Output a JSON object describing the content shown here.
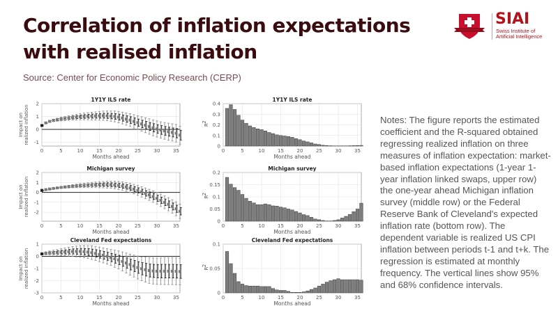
{
  "header": {
    "title": "Correlation of inflation expectations with realised inflation",
    "source": "Source: Center for Economic Policy Research (CERP)"
  },
  "logo": {
    "brand": "SIAI",
    "subtitle_line1": "Swiss Institute of",
    "subtitle_line2": "Artificial Intelligence",
    "colors": {
      "primary": "#b5121b"
    }
  },
  "notes": "Notes: The figure reports the estimated coefficient and the R-squared obtained regressing realized inflation on three measures of inflation expectation: market-based inflation expectations (1-year 1-year inflation linked swaps, upper row) the one-year ahead Michigan inflation survey (middle row) or the Federal Reserve Bank of Cleveland's expected inflation rate (bottom row). The dependent variable is realized US CPI inflation between periods t-1 and t+k. The regression is estimated at monthly frequency. The vertical lines show 95% and 68% confidence intervals.",
  "chart_data": [
    {
      "type": "scatter",
      "title": "1Y1Y ILS rate",
      "xlabel": "Months ahead",
      "ylabel": "Impact on realized inflation",
      "xlim": [
        0,
        36
      ],
      "ylim": [
        -1.3,
        2
      ],
      "xticks": [
        0,
        5,
        10,
        15,
        20,
        25,
        30,
        35
      ],
      "yticks": [
        -1,
        0,
        1,
        2
      ],
      "grid": true,
      "x": [
        0,
        1,
        2,
        3,
        4,
        5,
        6,
        7,
        8,
        9,
        10,
        11,
        12,
        13,
        14,
        15,
        16,
        17,
        18,
        19,
        20,
        21,
        22,
        23,
        24,
        25,
        26,
        27,
        28,
        29,
        30,
        31,
        32,
        33,
        34,
        35,
        36
      ],
      "estimate": [
        0.3,
        0.5,
        0.62,
        0.7,
        0.75,
        0.8,
        0.84,
        0.88,
        0.92,
        0.95,
        0.98,
        1.0,
        1.02,
        1.03,
        1.04,
        1.05,
        1.06,
        1.05,
        1.03,
        1.0,
        0.95,
        0.88,
        0.8,
        0.72,
        0.62,
        0.52,
        0.42,
        0.32,
        0.22,
        0.12,
        0.03,
        -0.05,
        -0.12,
        -0.18,
        -0.24,
        -0.3,
        -0.45
      ],
      "ci95_half": [
        0.05,
        0.06,
        0.08,
        0.1,
        0.12,
        0.14,
        0.16,
        0.18,
        0.2,
        0.22,
        0.24,
        0.26,
        0.28,
        0.3,
        0.32,
        0.34,
        0.36,
        0.38,
        0.4,
        0.42,
        0.44,
        0.46,
        0.48,
        0.5,
        0.52,
        0.54,
        0.56,
        0.58,
        0.6,
        0.62,
        0.63,
        0.64,
        0.65,
        0.66,
        0.67,
        0.68,
        0.7
      ],
      "ci68_half": [
        0.03,
        0.04,
        0.05,
        0.06,
        0.07,
        0.08,
        0.09,
        0.1,
        0.11,
        0.12,
        0.13,
        0.14,
        0.15,
        0.16,
        0.17,
        0.18,
        0.19,
        0.2,
        0.21,
        0.22,
        0.23,
        0.24,
        0.25,
        0.26,
        0.27,
        0.28,
        0.29,
        0.3,
        0.31,
        0.32,
        0.33,
        0.34,
        0.34,
        0.35,
        0.35,
        0.36,
        0.38
      ],
      "reference_line": 0
    },
    {
      "type": "bar",
      "title": "1Y1Y ILS rate",
      "xlabel": "Months ahead",
      "ylabel": "R²",
      "xlim": [
        0,
        36
      ],
      "ylim": [
        0,
        0.4
      ],
      "xticks": [
        0,
        5,
        10,
        15,
        20,
        25,
        30,
        35
      ],
      "yticks": [
        0,
        0.1,
        0.2,
        0.3,
        0.4
      ],
      "grid": true,
      "x": [
        1,
        2,
        3,
        4,
        5,
        6,
        7,
        8,
        9,
        10,
        11,
        12,
        13,
        14,
        15,
        16,
        17,
        18,
        19,
        20,
        21,
        22,
        23,
        24,
        25,
        26,
        27,
        28,
        29,
        30,
        31,
        32,
        33,
        34,
        35,
        36
      ],
      "values": [
        0.355,
        0.39,
        0.345,
        0.29,
        0.245,
        0.215,
        0.19,
        0.175,
        0.162,
        0.155,
        0.143,
        0.128,
        0.118,
        0.106,
        0.1,
        0.095,
        0.09,
        0.083,
        0.07,
        0.06,
        0.048,
        0.04,
        0.03,
        0.02,
        0.015,
        0.008,
        0.005,
        0.003,
        0.002,
        0.002,
        0.002,
        0.002,
        0.003,
        0.004,
        0.005,
        0.006
      ]
    },
    {
      "type": "scatter",
      "title": "Michigan survey",
      "xlabel": "Months ahead",
      "ylabel": "Impact on realized inflation",
      "xlim": [
        0,
        36
      ],
      "ylim": [
        -2.9,
        2
      ],
      "xticks": [
        0,
        5,
        10,
        15,
        20,
        25,
        30,
        35
      ],
      "yticks": [
        -2,
        -1,
        0,
        1,
        2
      ],
      "grid": true,
      "x": [
        0,
        1,
        2,
        3,
        4,
        5,
        6,
        7,
        8,
        9,
        10,
        11,
        12,
        13,
        14,
        15,
        16,
        17,
        18,
        19,
        20,
        21,
        22,
        23,
        24,
        25,
        26,
        27,
        28,
        29,
        30,
        31,
        32,
        33,
        34,
        35,
        36
      ],
      "estimate": [
        0.2,
        0.28,
        0.34,
        0.4,
        0.45,
        0.5,
        0.54,
        0.58,
        0.62,
        0.65,
        0.68,
        0.7,
        0.72,
        0.74,
        0.76,
        0.77,
        0.78,
        0.78,
        0.77,
        0.74,
        0.7,
        0.64,
        0.55,
        0.45,
        0.33,
        0.2,
        0.05,
        -0.1,
        -0.25,
        -0.42,
        -0.6,
        -0.8,
        -1.0,
        -1.2,
        -1.42,
        -1.65,
        -1.9
      ],
      "ci95_half": [
        0.05,
        0.06,
        0.07,
        0.08,
        0.09,
        0.1,
        0.12,
        0.14,
        0.16,
        0.18,
        0.2,
        0.22,
        0.24,
        0.26,
        0.28,
        0.3,
        0.32,
        0.34,
        0.36,
        0.38,
        0.4,
        0.42,
        0.44,
        0.46,
        0.48,
        0.5,
        0.52,
        0.54,
        0.56,
        0.58,
        0.6,
        0.62,
        0.64,
        0.66,
        0.68,
        0.7,
        0.72
      ],
      "ci68_half": [
        0.03,
        0.04,
        0.04,
        0.05,
        0.05,
        0.06,
        0.07,
        0.08,
        0.09,
        0.1,
        0.11,
        0.12,
        0.13,
        0.14,
        0.15,
        0.16,
        0.17,
        0.18,
        0.19,
        0.2,
        0.21,
        0.22,
        0.23,
        0.24,
        0.25,
        0.26,
        0.27,
        0.28,
        0.29,
        0.3,
        0.31,
        0.32,
        0.33,
        0.34,
        0.35,
        0.36,
        0.37
      ],
      "reference_line": 0
    },
    {
      "type": "bar",
      "title": "Michigan survey",
      "xlabel": "Months ahead",
      "ylabel": "R²",
      "xlim": [
        0,
        36
      ],
      "ylim": [
        0,
        0.2
      ],
      "xticks": [
        0,
        5,
        10,
        15,
        20,
        25,
        30,
        35
      ],
      "yticks": [
        0,
        0.05,
        0.1,
        0.15,
        0.2
      ],
      "grid": true,
      "x": [
        1,
        2,
        3,
        4,
        5,
        6,
        7,
        8,
        9,
        10,
        11,
        12,
        13,
        14,
        15,
        16,
        17,
        18,
        19,
        20,
        21,
        22,
        23,
        24,
        25,
        26,
        27,
        28,
        29,
        30,
        31,
        32,
        33,
        34,
        35,
        36
      ],
      "values": [
        0.18,
        0.152,
        0.138,
        0.127,
        0.11,
        0.094,
        0.082,
        0.075,
        0.068,
        0.068,
        0.071,
        0.068,
        0.063,
        0.062,
        0.058,
        0.055,
        0.05,
        0.046,
        0.04,
        0.034,
        0.027,
        0.023,
        0.016,
        0.009,
        0.006,
        0.003,
        0.001,
        0.001,
        0.003,
        0.006,
        0.013,
        0.02,
        0.028,
        0.039,
        0.05,
        0.074
      ]
    },
    {
      "type": "scatter",
      "title": "Cleveland Fed expectations",
      "xlabel": "Months ahead",
      "ylabel": "Impact on realized inflation",
      "xlim": [
        0,
        36
      ],
      "ylim": [
        -3,
        1
      ],
      "xticks": [
        0,
        5,
        10,
        15,
        20,
        25,
        30,
        35
      ],
      "yticks": [
        -3,
        -2,
        -1,
        0,
        1
      ],
      "grid": true,
      "x": [
        0,
        1,
        2,
        3,
        4,
        5,
        6,
        7,
        8,
        9,
        10,
        11,
        12,
        13,
        14,
        15,
        16,
        17,
        18,
        19,
        20,
        21,
        22,
        23,
        24,
        25,
        26,
        27,
        28,
        29,
        30,
        31,
        32,
        33,
        34,
        35,
        36
      ],
      "estimate": [
        0.2,
        0.25,
        0.28,
        0.3,
        0.32,
        0.34,
        0.36,
        0.38,
        0.4,
        0.4,
        0.4,
        0.38,
        0.35,
        0.3,
        0.24,
        0.16,
        0.08,
        0.0,
        -0.1,
        -0.2,
        -0.3,
        -0.42,
        -0.55,
        -0.68,
        -0.8,
        -0.92,
        -1.02,
        -1.1,
        -1.17,
        -1.2,
        -1.22,
        -1.22,
        -1.22,
        -1.22,
        -1.22,
        -1.23,
        -1.25
      ],
      "ci95_half": [
        0.08,
        0.12,
        0.16,
        0.2,
        0.24,
        0.28,
        0.32,
        0.36,
        0.4,
        0.44,
        0.47,
        0.5,
        0.53,
        0.56,
        0.58,
        0.6,
        0.62,
        0.64,
        0.66,
        0.7,
        0.74,
        0.78,
        0.82,
        0.86,
        0.9,
        0.94,
        0.98,
        1.02,
        1.05,
        1.07,
        1.08,
        1.09,
        1.1,
        1.1,
        1.1,
        1.1,
        1.1
      ],
      "ci68_half": [
        0.05,
        0.07,
        0.09,
        0.11,
        0.13,
        0.15,
        0.17,
        0.19,
        0.21,
        0.23,
        0.25,
        0.26,
        0.28,
        0.29,
        0.3,
        0.31,
        0.32,
        0.33,
        0.34,
        0.36,
        0.38,
        0.4,
        0.42,
        0.44,
        0.46,
        0.48,
        0.5,
        0.52,
        0.53,
        0.54,
        0.55,
        0.56,
        0.56,
        0.56,
        0.56,
        0.56,
        0.56
      ],
      "reference_line": 0
    },
    {
      "type": "bar",
      "title": "Cleveland Fed expectations",
      "xlabel": "Months ahead",
      "ylabel": "R²",
      "xlim": [
        0,
        36
      ],
      "ylim": [
        0,
        0.1
      ],
      "xticks": [
        0,
        5,
        10,
        15,
        20,
        25,
        30,
        35
      ],
      "yticks": [
        0,
        0.05,
        0.1
      ],
      "grid": true,
      "x": [
        1,
        2,
        3,
        4,
        5,
        6,
        7,
        8,
        9,
        10,
        11,
        12,
        13,
        14,
        15,
        16,
        17,
        18,
        19,
        20,
        21,
        22,
        23,
        24,
        25,
        26,
        27,
        28,
        29,
        30,
        31,
        32,
        33,
        34,
        35,
        36
      ],
      "values": [
        0.085,
        0.06,
        0.04,
        0.023,
        0.018,
        0.015,
        0.014,
        0.014,
        0.014,
        0.013,
        0.013,
        0.013,
        0.009,
        0.006,
        0.005,
        0.005,
        0.003,
        0.001,
        0.001,
        0.001,
        0.002,
        0.004,
        0.007,
        0.01,
        0.014,
        0.018,
        0.022,
        0.025,
        0.027,
        0.029,
        0.027,
        0.027,
        0.027,
        0.027,
        0.027,
        0.026
      ]
    }
  ]
}
